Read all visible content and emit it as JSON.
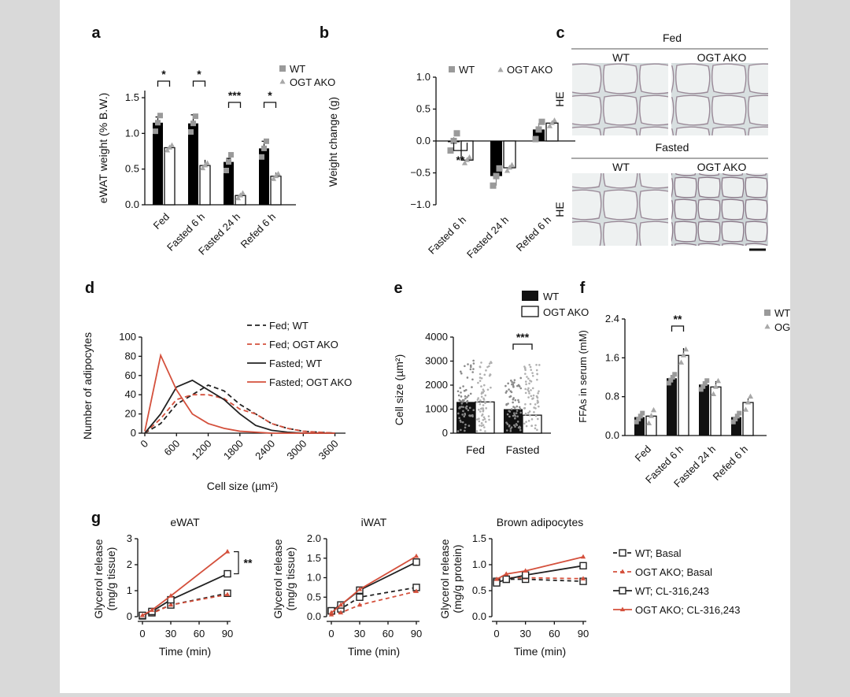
{
  "colors": {
    "wt_bar": "#000000",
    "ako_bar": "#ffffff",
    "wt_dot": "#9a9a9a",
    "ako_dot": "#a8a8a8",
    "red": "#d4503c",
    "black": "#222222"
  },
  "chart_data": [
    {
      "id": "a",
      "panel_label": "a",
      "type": "bar",
      "categories": [
        "Fed",
        "Fasted 6 h",
        "Fasted 24 h",
        "Refed 6 h"
      ],
      "series": [
        {
          "name": "WT",
          "values": [
            1.15,
            1.14,
            0.6,
            0.79
          ],
          "errors": [
            0.08,
            0.12,
            0.05,
            0.1
          ]
        },
        {
          "name": "OGT AKO",
          "values": [
            0.8,
            0.55,
            0.13,
            0.4
          ],
          "errors": [
            0.03,
            0.08,
            0.03,
            0.05
          ]
        }
      ],
      "ylabel": "eWAT weight (% B.W.)",
      "ylim": [
        0,
        1.6
      ],
      "yticks": [
        0,
        0.5,
        1.0,
        1.5
      ],
      "yticklabels": [
        "0.0",
        "0.5",
        "1.0",
        "1.5"
      ],
      "significance": [
        "*",
        "*",
        "***",
        "*"
      ],
      "legend": "top-right"
    },
    {
      "id": "b",
      "panel_label": "b",
      "type": "bar",
      "categories": [
        "Fasted 6 h",
        "Fasted 24 h",
        "Refed 6 h"
      ],
      "series": [
        {
          "name": "WT",
          "values": [
            0.0,
            -0.55,
            0.18
          ],
          "errors": [
            0.06,
            0.15,
            0.1
          ]
        },
        {
          "name": "OGT AKO",
          "values": [
            -0.3,
            -0.42,
            0.28
          ],
          "errors": [
            0.03,
            0.06,
            0.05
          ]
        }
      ],
      "ylabel": "Weight change (g)",
      "ylim": [
        -1.0,
        1.0
      ],
      "yticks": [
        -1.0,
        -0.5,
        0.0,
        0.5,
        1.0
      ],
      "yticklabels": [
        "−1.0",
        "−0.5",
        "0.0",
        "0.5",
        "1.0"
      ],
      "significance": [
        "**",
        "",
        ""
      ],
      "legend": "top"
    },
    {
      "id": "c",
      "panel_label": "c",
      "type": "table",
      "stain": "HE",
      "groups": [
        {
          "title": "Fed",
          "columns": [
            "WT",
            "OGT AKO"
          ]
        },
        {
          "title": "Fasted",
          "columns": [
            "WT",
            "OGT AKO"
          ]
        }
      ]
    },
    {
      "id": "d",
      "panel_label": "d",
      "type": "line",
      "xlabel": "Cell size (µm²)",
      "ylabel": "Number of adipocytes",
      "xlim": [
        0,
        3800
      ],
      "ylim": [
        0,
        100
      ],
      "xticks": [
        0,
        600,
        1200,
        1800,
        2400,
        3000,
        3600
      ],
      "yticks": [
        0,
        20,
        40,
        60,
        80,
        100
      ],
      "x": [
        0,
        300,
        600,
        900,
        1200,
        1500,
        1800,
        2100,
        2400,
        2700,
        3000,
        3300,
        3600
      ],
      "series": [
        {
          "name": "Fed; WT",
          "style": "dashed",
          "color": "#222222",
          "values": [
            0,
            10,
            30,
            40,
            50,
            44,
            30,
            20,
            10,
            5,
            2,
            1,
            0
          ]
        },
        {
          "name": "Fed; OGT AKO",
          "style": "dashed",
          "color": "#d4503c",
          "values": [
            0,
            15,
            35,
            40,
            40,
            36,
            25,
            20,
            10,
            5,
            2,
            1,
            0
          ]
        },
        {
          "name": "Fasted; WT",
          "style": "solid",
          "color": "#222222",
          "values": [
            0,
            20,
            48,
            55,
            45,
            35,
            20,
            8,
            3,
            1,
            0,
            0,
            0
          ]
        },
        {
          "name": "Fasted; OGT AKO",
          "style": "solid",
          "color": "#d4503c",
          "values": [
            2,
            81,
            45,
            20,
            10,
            5,
            2,
            1,
            0,
            0,
            0,
            0,
            0
          ]
        }
      ],
      "legend": "top-right"
    },
    {
      "id": "e",
      "panel_label": "e",
      "type": "bar",
      "categories": [
        "Fed",
        "Fasted"
      ],
      "series": [
        {
          "name": "WT",
          "values": [
            1300,
            1000
          ]
        },
        {
          "name": "OGT AKO",
          "values": [
            1300,
            750
          ]
        }
      ],
      "ylabel": "Cell size (µm²)",
      "ylim": [
        0,
        4000
      ],
      "yticks": [
        0,
        1000,
        2000,
        3000,
        4000
      ],
      "significance": [
        "",
        "***"
      ],
      "legend": "top"
    },
    {
      "id": "f",
      "panel_label": "f",
      "type": "bar",
      "categories": [
        "Fed",
        "Fasted 6 h",
        "Fasted 24 h",
        "Refed 6 h"
      ],
      "series": [
        {
          "name": "WT",
          "values": [
            0.38,
            1.18,
            1.05,
            0.38
          ],
          "errors": [
            0.04,
            0.1,
            0.1,
            0.05
          ]
        },
        {
          "name": "OGT AKO",
          "values": [
            0.4,
            1.65,
            1.0,
            0.68
          ],
          "errors": [
            0.05,
            0.15,
            0.12,
            0.08
          ]
        }
      ],
      "ylabel": "FFAs in serum (mM)",
      "ylim": [
        0,
        2.4
      ],
      "yticks": [
        0,
        0.8,
        1.6,
        2.4
      ],
      "yticklabels": [
        "0.0",
        "0.8",
        "1.6",
        "2.4"
      ],
      "significance": [
        "",
        "**",
        "",
        ""
      ],
      "legend": "top-right"
    },
    {
      "id": "g1",
      "panel_label": "g",
      "type": "line",
      "title": "eWAT",
      "xlabel": "Time (min)",
      "ylabel": "Glycerol release (mg/g tissue)",
      "xlim": [
        0,
        90
      ],
      "ylim": [
        0,
        3
      ],
      "xticks": [
        0,
        30,
        60,
        90
      ],
      "yticks": [
        0,
        1,
        2,
        3
      ],
      "x": [
        0,
        10,
        30,
        90
      ],
      "series": [
        {
          "name": "WT; Basal",
          "values": [
            0.03,
            0.15,
            0.45,
            0.9
          ]
        },
        {
          "name": "OGT AKO; Basal",
          "values": [
            0.03,
            0.12,
            0.45,
            0.85
          ]
        },
        {
          "name": "WT; CL-316,243",
          "values": [
            0.05,
            0.2,
            0.65,
            1.65
          ]
        },
        {
          "name": "OGT AKO; CL-316,243",
          "values": [
            0.05,
            0.25,
            0.8,
            2.5
          ]
        }
      ],
      "significance": "**"
    },
    {
      "id": "g2",
      "type": "line",
      "title": "iWAT",
      "xlabel": "Time (min)",
      "ylabel": "Glycerol release (mg/g tissue)",
      "xlim": [
        0,
        90
      ],
      "ylim": [
        0,
        2
      ],
      "xticks": [
        0,
        30,
        60,
        90
      ],
      "yticks": [
        0,
        0.5,
        1.0,
        1.5,
        2.0
      ],
      "yticklabels": [
        "0.0",
        "0.5",
        "1.0",
        "1.5",
        "2.0"
      ],
      "x": [
        0,
        10,
        30,
        90
      ],
      "series": [
        {
          "name": "WT; Basal",
          "values": [
            0.15,
            0.2,
            0.5,
            0.75
          ]
        },
        {
          "name": "OGT AKO; Basal",
          "values": [
            0.05,
            0.1,
            0.3,
            0.65
          ]
        },
        {
          "name": "WT; CL-316,243",
          "values": [
            0.15,
            0.3,
            0.68,
            1.4
          ]
        },
        {
          "name": "OGT AKO; CL-316,243",
          "values": [
            0.1,
            0.3,
            0.7,
            1.55
          ]
        }
      ]
    },
    {
      "id": "g3",
      "type": "line",
      "title": "Brown adipocytes",
      "xlabel": "Time (min)",
      "ylabel": "Glycerol release (mg/g protein)",
      "xlim": [
        0,
        90
      ],
      "ylim": [
        0,
        1.5
      ],
      "xticks": [
        0,
        30,
        60,
        90
      ],
      "yticks": [
        0,
        0.5,
        1.0,
        1.5
      ],
      "yticklabels": [
        "0.0",
        "0.5",
        "1.0",
        "1.5"
      ],
      "x": [
        0,
        10,
        30,
        90
      ],
      "series": [
        {
          "name": "WT; Basal",
          "values": [
            0.68,
            0.72,
            0.72,
            0.68
          ]
        },
        {
          "name": "OGT AKO; Basal",
          "values": [
            0.7,
            0.75,
            0.75,
            0.73
          ]
        },
        {
          "name": "WT; CL-316,243",
          "values": [
            0.65,
            0.72,
            0.8,
            0.98
          ]
        },
        {
          "name": "OGT AKO; CL-316,243",
          "values": [
            0.72,
            0.82,
            0.88,
            1.15
          ]
        }
      ],
      "legend": "right"
    }
  ]
}
